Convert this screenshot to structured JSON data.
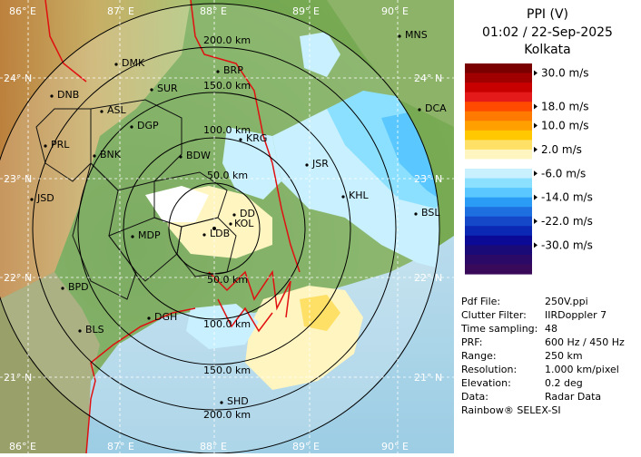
{
  "header": {
    "product": "PPI (V)",
    "datetime": "01:02 / 22-Sep-2025",
    "station": "Kolkata"
  },
  "legend": {
    "unit": "m/s",
    "labels": [
      "30.0 m/s",
      "18.0 m/s",
      "10.0 m/s",
      "2.0 m/s",
      "-6.0 m/s",
      "-14.0 m/s",
      "-22.0 m/s",
      "-30.0 m/s"
    ],
    "colors": [
      "#7a0000",
      "#a00000",
      "#c80000",
      "#e41a1a",
      "#ff4a00",
      "#ff7a00",
      "#ffa000",
      "#ffc800",
      "#ffe066",
      "#fff5c0",
      "#ffffff",
      "#c8f0ff",
      "#8ce0ff",
      "#5ac8ff",
      "#2a9cf5",
      "#1e70e0",
      "#1448c8",
      "#0a28b4",
      "#0a0a96",
      "#1a0a78",
      "#2a0a66",
      "#3a0a5a"
    ]
  },
  "info": [
    {
      "key": "Pdf File:",
      "value": "250V.ppi"
    },
    {
      "key": "Clutter Filter:",
      "value": "IIRDoppler 7"
    },
    {
      "key": "Time sampling:",
      "value": "48"
    },
    {
      "key": "PRF:",
      "value": "600 Hz / 450 Hz"
    },
    {
      "key": "Range:",
      "value": "250 km"
    },
    {
      "key": "Resolution:",
      "value": "1.000 km/pixel"
    },
    {
      "key": "Elevation:",
      "value": "0.2 deg"
    },
    {
      "key": "Data:",
      "value": "Radar Data"
    }
  ],
  "credit": "Rainbow® SELEX-SI",
  "map": {
    "longitudes": [
      "86° E",
      "87° E",
      "88° E",
      "89° E",
      "90° E"
    ],
    "latitudes": [
      "24° N",
      "23° N",
      "22° N",
      "21° N"
    ],
    "range_rings": [
      "50.0 km",
      "100.0 km",
      "150.0 km",
      "200.0 km"
    ],
    "cities": [
      "MNS",
      "DMK",
      "BRP",
      "DNB",
      "SUR",
      "ASL",
      "DGP",
      "DCA",
      "PRL",
      "KRG",
      "BNK",
      "BDW",
      "JSR",
      "KHL",
      "JSD",
      "DD",
      "KOL",
      "BSL",
      "MDP",
      "LDB",
      "BPD",
      "DGH",
      "BLS",
      "SHD"
    ]
  }
}
